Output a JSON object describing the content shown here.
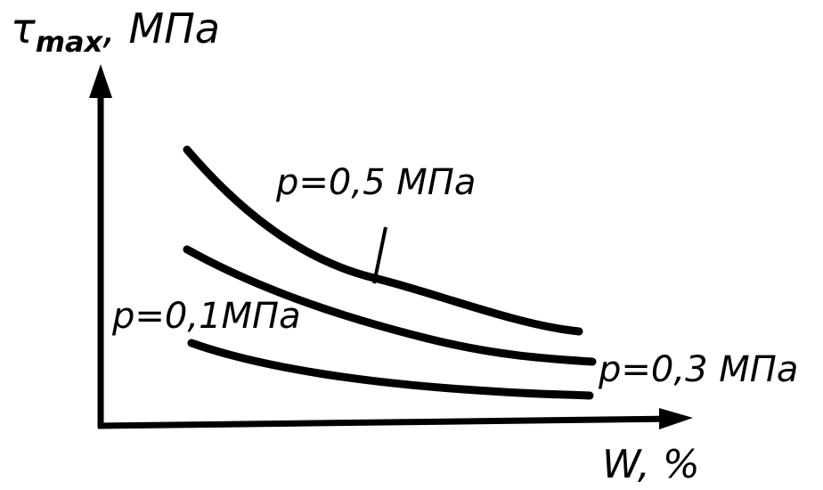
{
  "axes": {
    "y_label": {
      "symbol": "τ",
      "subscript": "max",
      "unit": ", МПа"
    },
    "x_label": "W, %"
  },
  "curves": [
    {
      "label": "p=0,5 МПа"
    },
    {
      "label": "p=0,3 МПа"
    },
    {
      "label": "p=0,1МПа"
    }
  ]
}
